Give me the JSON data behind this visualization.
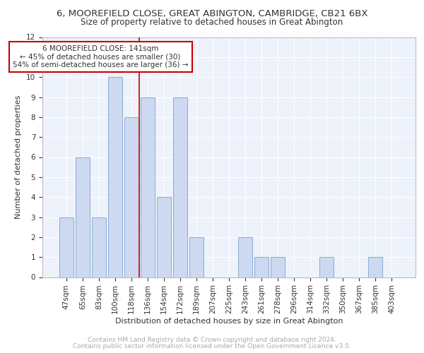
{
  "title": "6, MOOREFIELD CLOSE, GREAT ABINGTON, CAMBRIDGE, CB21 6BX",
  "subtitle": "Size of property relative to detached houses in Great Abington",
  "xlabel": "Distribution of detached houses by size in Great Abington",
  "ylabel": "Number of detached properties",
  "bar_labels": [
    "47sqm",
    "65sqm",
    "83sqm",
    "100sqm",
    "118sqm",
    "136sqm",
    "154sqm",
    "172sqm",
    "189sqm",
    "207sqm",
    "225sqm",
    "243sqm",
    "261sqm",
    "278sqm",
    "296sqm",
    "314sqm",
    "332sqm",
    "350sqm",
    "367sqm",
    "385sqm",
    "403sqm"
  ],
  "bar_values": [
    3,
    6,
    3,
    10,
    8,
    9,
    4,
    9,
    2,
    0,
    0,
    2,
    1,
    1,
    0,
    0,
    1,
    0,
    0,
    1,
    0
  ],
  "bar_color": "#ccd9f0",
  "bar_edge_color": "#8aaad4",
  "property_line_x": 4.5,
  "property_line_color": "#cc0000",
  "annotation_text": "6 MOOREFIELD CLOSE: 141sqm\n← 45% of detached houses are smaller (30)\n54% of semi-detached houses are larger (36) →",
  "annotation_box_color": "#ffffff",
  "annotation_box_edge_color": "#cc0000",
  "ylim": [
    0,
    12
  ],
  "yticks": [
    0,
    1,
    2,
    3,
    4,
    5,
    6,
    7,
    8,
    9,
    10,
    11,
    12
  ],
  "footer_line1": "Contains HM Land Registry data © Crown copyright and database right 2024.",
  "footer_line2": "Contains public sector information licensed under the Open Government Licence v3.0.",
  "title_fontsize": 9.5,
  "subtitle_fontsize": 8.5,
  "xlabel_fontsize": 8,
  "ylabel_fontsize": 8,
  "tick_fontsize": 7.5,
  "annotation_fontsize": 7.5,
  "footer_fontsize": 6.5,
  "background_color": "#eef2fa"
}
